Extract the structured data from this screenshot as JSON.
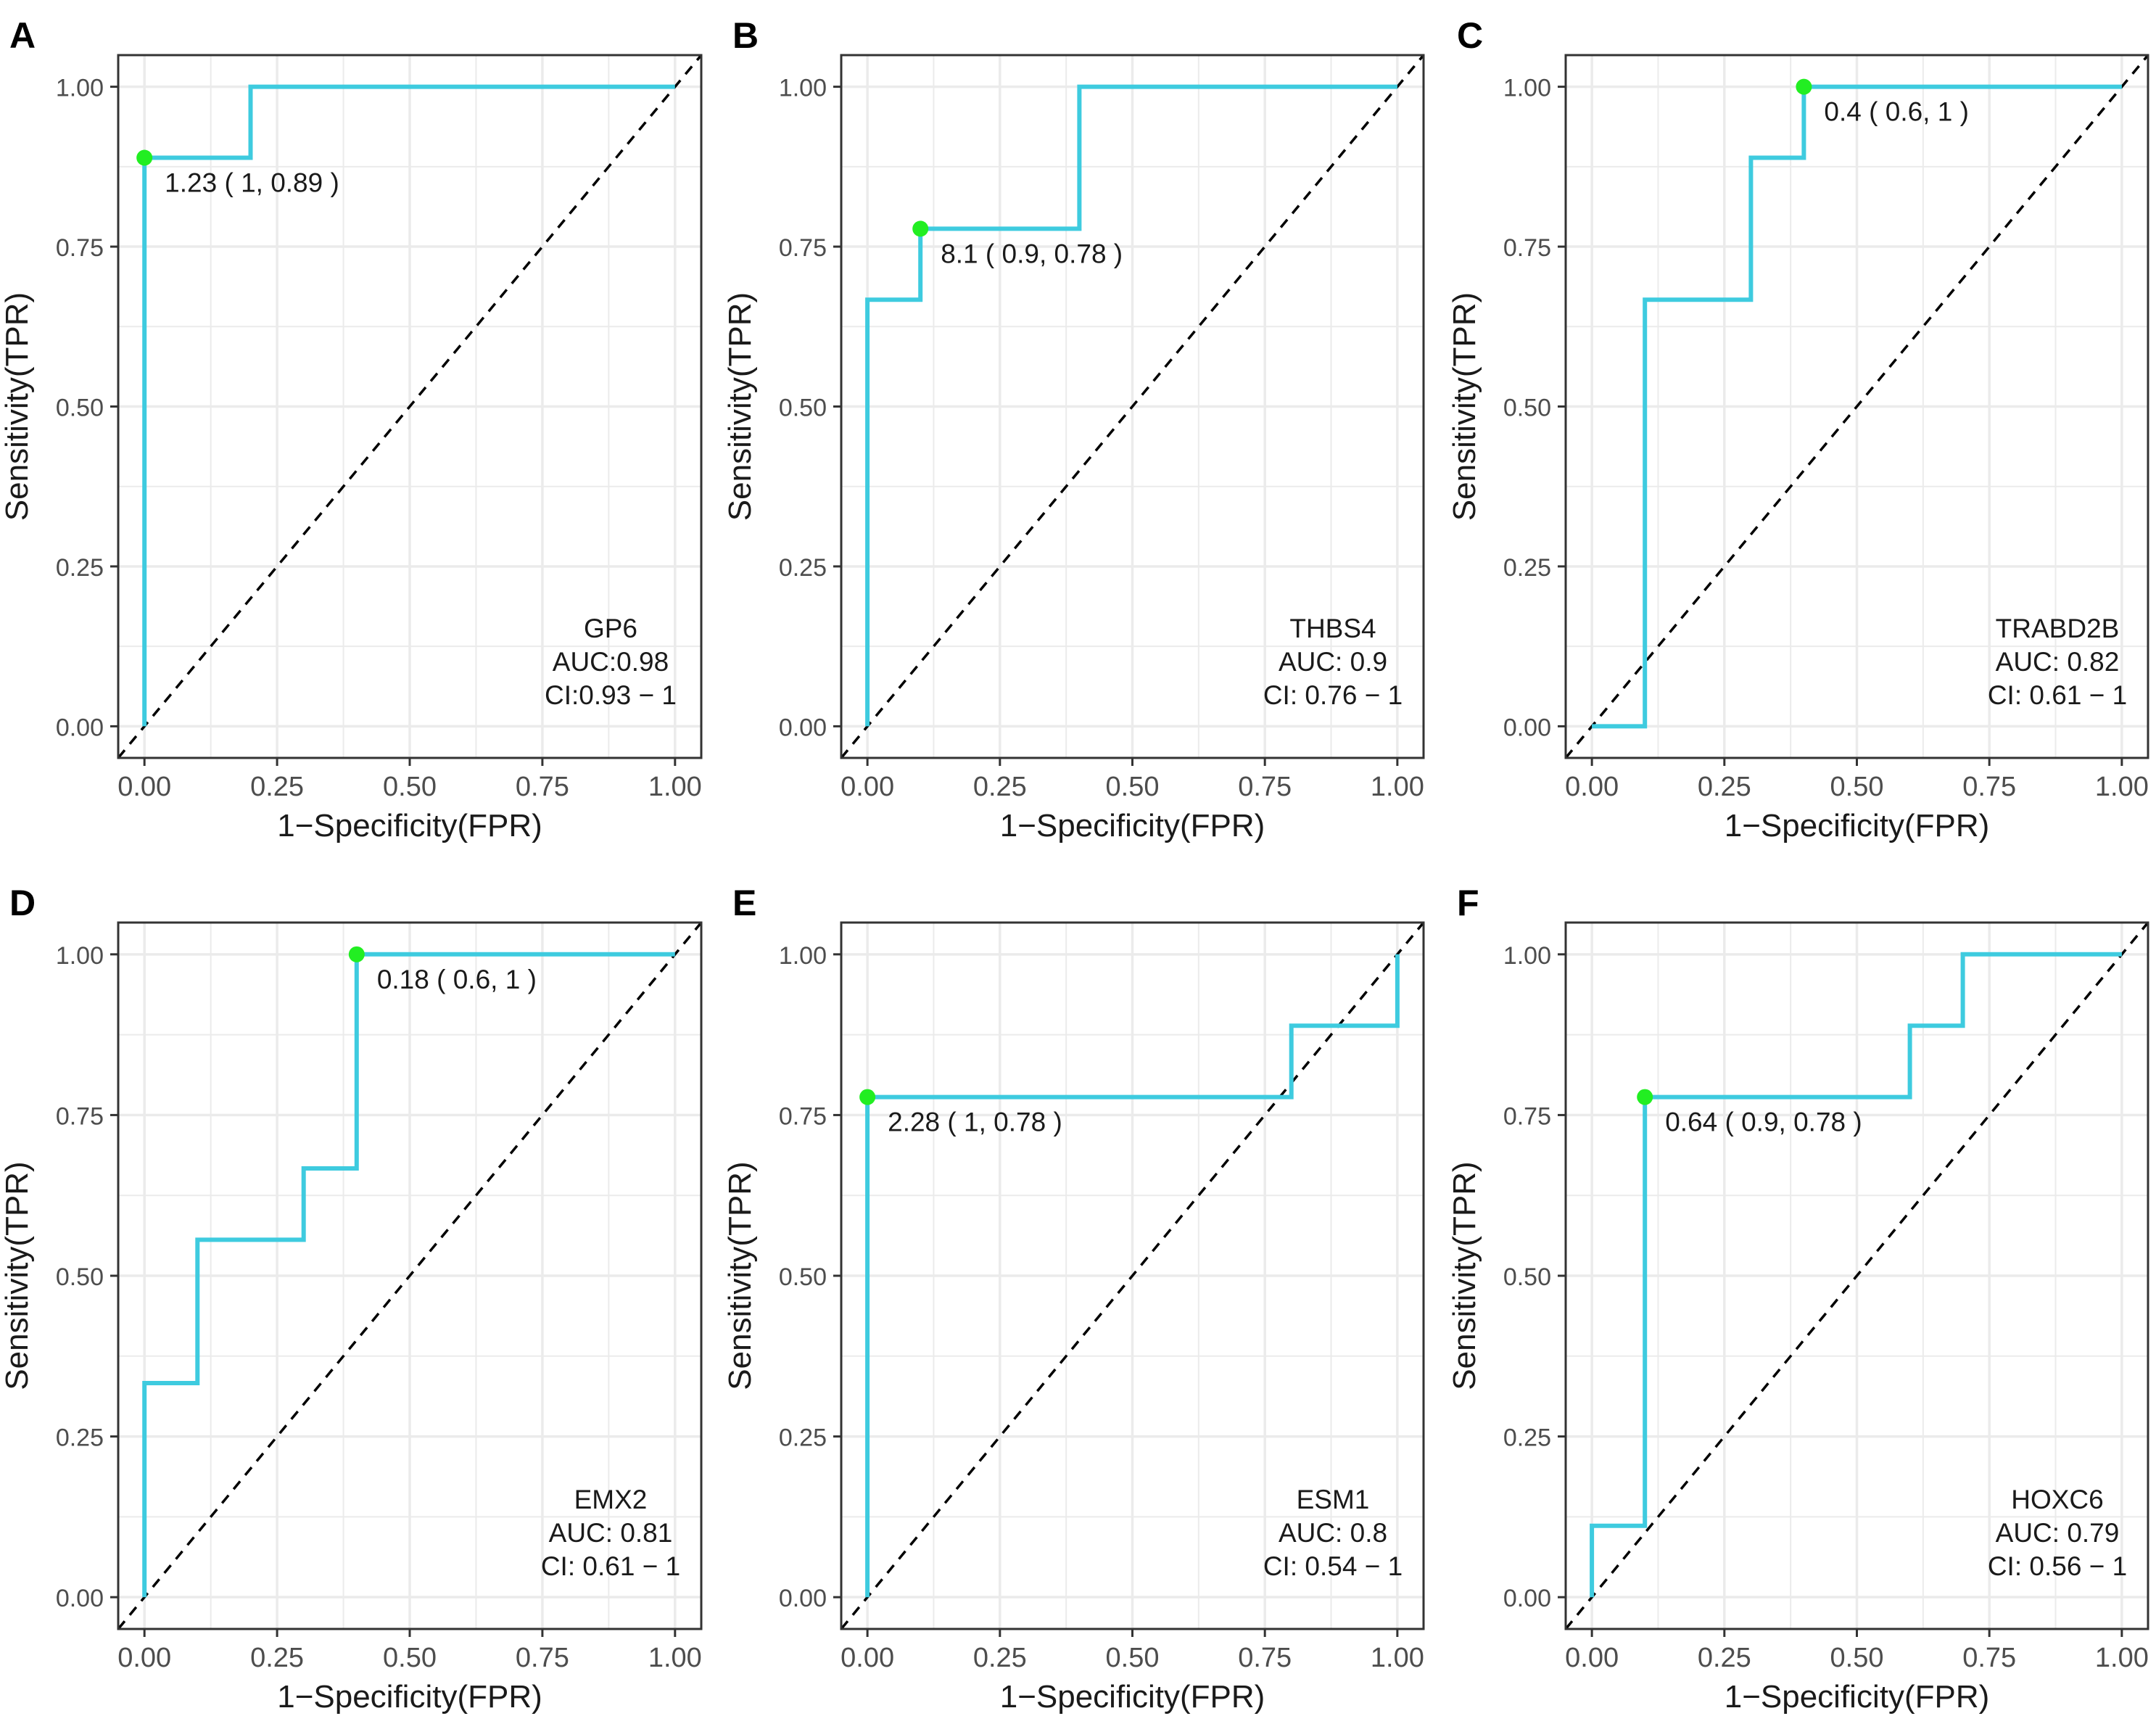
{
  "colors": {
    "curve": "#3ecbdf",
    "point": "#22ee22",
    "grid": "#ebebeb",
    "border": "#333333",
    "diagonal": "#000000",
    "text": "#1a1a1a",
    "tick_text": "#4d4d4d"
  },
  "chart_data": [
    {
      "panel": "A",
      "type": "line",
      "gene": "GP6",
      "auc_label": "AUC:0.98",
      "ci_label": "CI:0.93 − 1",
      "xlabel": "1−Specificity(FPR)",
      "ylabel": "Sensitivity(TPR)",
      "xlim": [
        0,
        1
      ],
      "ylim": [
        0,
        1
      ],
      "x_ticks": [
        "0.00",
        "0.25",
        "0.50",
        "0.75",
        "1.00"
      ],
      "y_ticks": [
        "0.00",
        "0.25",
        "0.50",
        "0.75",
        "1.00"
      ],
      "roc": {
        "x": [
          0,
          0,
          0.2,
          0.2,
          1
        ],
        "y": [
          0,
          0.889,
          0.889,
          1,
          1
        ]
      },
      "best_point": {
        "x": 0,
        "y": 0.889,
        "label": "1.23 ( 1, 0.89 )"
      }
    },
    {
      "panel": "B",
      "type": "line",
      "gene": "THBS4",
      "auc_label": "AUC: 0.9",
      "ci_label": "CI: 0.76 − 1",
      "xlabel": "1−Specificity(FPR)",
      "ylabel": "Sensitivity(TPR)",
      "xlim": [
        0,
        1
      ],
      "ylim": [
        0,
        1
      ],
      "x_ticks": [
        "0.00",
        "0.25",
        "0.50",
        "0.75",
        "1.00"
      ],
      "y_ticks": [
        "0.00",
        "0.25",
        "0.50",
        "0.75",
        "1.00"
      ],
      "roc": {
        "x": [
          0,
          0,
          0.1,
          0.1,
          0.4,
          0.4,
          1
        ],
        "y": [
          0,
          0.667,
          0.667,
          0.778,
          0.778,
          1,
          1
        ]
      },
      "best_point": {
        "x": 0.1,
        "y": 0.778,
        "label": "8.1 ( 0.9, 0.78 )"
      }
    },
    {
      "panel": "C",
      "type": "line",
      "gene": "TRABD2B",
      "auc_label": "AUC: 0.82",
      "ci_label": "CI: 0.61 − 1",
      "xlabel": "1−Specificity(FPR)",
      "ylabel": "Sensitivity(TPR)",
      "xlim": [
        0,
        1
      ],
      "ylim": [
        0,
        1
      ],
      "x_ticks": [
        "0.00",
        "0.25",
        "0.50",
        "0.75",
        "1.00"
      ],
      "y_ticks": [
        "0.00",
        "0.25",
        "0.50",
        "0.75",
        "1.00"
      ],
      "roc": {
        "x": [
          0,
          0.1,
          0.1,
          0.3,
          0.3,
          0.4,
          0.4,
          1
        ],
        "y": [
          0,
          0,
          0.667,
          0.667,
          0.889,
          0.889,
          1,
          1
        ]
      },
      "best_point": {
        "x": 0.4,
        "y": 1,
        "label": "0.4 ( 0.6, 1 )"
      }
    },
    {
      "panel": "D",
      "type": "line",
      "gene": "EMX2",
      "auc_label": "AUC: 0.81",
      "ci_label": "CI: 0.61 − 1",
      "xlabel": "1−Specificity(FPR)",
      "ylabel": "Sensitivity(TPR)",
      "xlim": [
        0,
        1
      ],
      "ylim": [
        0,
        1
      ],
      "x_ticks": [
        "0.00",
        "0.25",
        "0.50",
        "0.75",
        "1.00"
      ],
      "y_ticks": [
        "0.00",
        "0.25",
        "0.50",
        "0.75",
        "1.00"
      ],
      "roc": {
        "x": [
          0,
          0,
          0.1,
          0.1,
          0.3,
          0.3,
          0.4,
          0.4,
          1
        ],
        "y": [
          0,
          0.333,
          0.333,
          0.556,
          0.556,
          0.667,
          0.667,
          1,
          1
        ]
      },
      "best_point": {
        "x": 0.4,
        "y": 1,
        "label": "0.18 ( 0.6, 1 )"
      }
    },
    {
      "panel": "E",
      "type": "line",
      "gene": "ESM1",
      "auc_label": "AUC: 0.8",
      "ci_label": "CI: 0.54 − 1",
      "xlabel": "1−Specificity(FPR)",
      "ylabel": "Sensitivity(TPR)",
      "xlim": [
        0,
        1
      ],
      "ylim": [
        0,
        1
      ],
      "x_ticks": [
        "0.00",
        "0.25",
        "0.50",
        "0.75",
        "1.00"
      ],
      "y_ticks": [
        "0.00",
        "0.25",
        "0.50",
        "0.75",
        "1.00"
      ],
      "roc": {
        "x": [
          0,
          0,
          0.8,
          0.8,
          1,
          1
        ],
        "y": [
          0,
          0.778,
          0.778,
          0.889,
          0.889,
          1
        ]
      },
      "best_point": {
        "x": 0,
        "y": 0.778,
        "label": "2.28 ( 1, 0.78 )"
      }
    },
    {
      "panel": "F",
      "type": "line",
      "gene": "HOXC6",
      "auc_label": "AUC: 0.79",
      "ci_label": "CI: 0.56 − 1",
      "xlabel": "1−Specificity(FPR)",
      "ylabel": "Sensitivity(TPR)",
      "xlim": [
        0,
        1
      ],
      "ylim": [
        0,
        1
      ],
      "x_ticks": [
        "0.00",
        "0.25",
        "0.50",
        "0.75",
        "1.00"
      ],
      "y_ticks": [
        "0.00",
        "0.25",
        "0.50",
        "0.75",
        "1.00"
      ],
      "roc": {
        "x": [
          0,
          0,
          0.1,
          0.1,
          0.6,
          0.6,
          0.7,
          0.7,
          1
        ],
        "y": [
          0,
          0.111,
          0.111,
          0.778,
          0.778,
          0.889,
          0.889,
          1,
          1
        ]
      },
      "best_point": {
        "x": 0.1,
        "y": 0.778,
        "label": "0.64 ( 0.9, 0.78 )"
      }
    }
  ]
}
